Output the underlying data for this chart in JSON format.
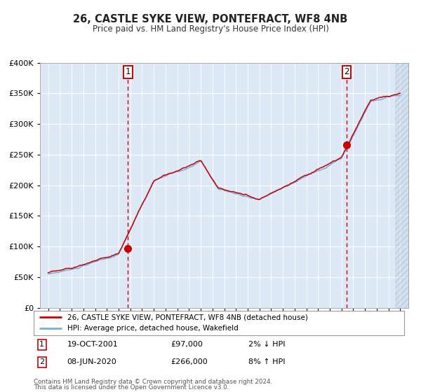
{
  "title": "26, CASTLE SYKE VIEW, PONTEFRACT, WF8 4NB",
  "subtitle": "Price paid vs. HM Land Registry's House Price Index (HPI)",
  "legend_line1": "26, CASTLE SYKE VIEW, PONTEFRACT, WF8 4NB (detached house)",
  "legend_line2": "HPI: Average price, detached house, Wakefield",
  "annotation1_date": "19-OCT-2001",
  "annotation1_price": "£97,000",
  "annotation1_hpi": "2% ↓ HPI",
  "annotation2_date": "08-JUN-2020",
  "annotation2_price": "£266,000",
  "annotation2_hpi": "8% ↑ HPI",
  "footnote1": "Contains HM Land Registry data © Crown copyright and database right 2024.",
  "footnote2": "This data is licensed under the Open Government Licence v3.0.",
  "red_color": "#cc0000",
  "blue_color": "#7aaed6",
  "plot_bg": "#dce8f5",
  "vline_color": "#cc0000",
  "sale1_year": 2001.8,
  "sale1_value": 97000,
  "sale2_year": 2020.44,
  "sale2_value": 266000,
  "ylim_max": 400000,
  "xlim_min": 1994.3,
  "xlim_max": 2025.7
}
